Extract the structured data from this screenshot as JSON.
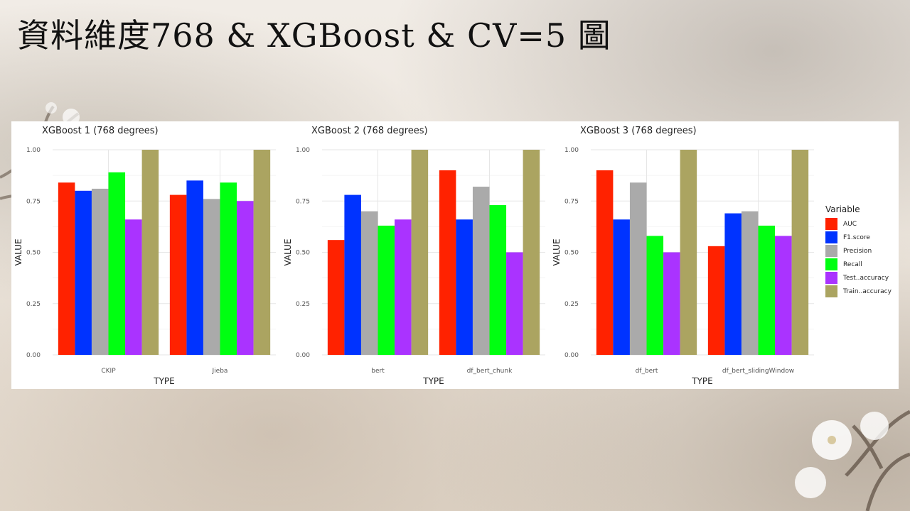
{
  "slide": {
    "title": "資料維度768 & XGBoost & CV=5 圖"
  },
  "legend": {
    "title": "Variable"
  },
  "colors": {
    "AUC": "#ff2200",
    "F1.score": "#0033ff",
    "Precision": "#aaaaaa",
    "Recall": "#00ff11",
    "Test..accuracy": "#aa33ff",
    "Train..accuracy": "#aba461"
  },
  "chart_data": [
    {
      "type": "bar",
      "title": "XGBoost 1 (768 degrees)",
      "xlabel": "TYPE",
      "ylabel": "VALUE",
      "ylim": [
        0,
        1
      ],
      "yticks": [
        "0.00",
        "0.25",
        "0.50",
        "0.75",
        "1.00"
      ],
      "grid": true,
      "legend_position": "right",
      "categories": [
        "CKIP",
        "Jieba"
      ],
      "series": [
        {
          "name": "AUC",
          "values": [
            0.84,
            0.78
          ]
        },
        {
          "name": "F1.score",
          "values": [
            0.8,
            0.85
          ]
        },
        {
          "name": "Precision",
          "values": [
            0.81,
            0.76
          ]
        },
        {
          "name": "Recall",
          "values": [
            0.89,
            0.84
          ]
        },
        {
          "name": "Test..accuracy",
          "values": [
            0.66,
            0.75
          ]
        },
        {
          "name": "Train..accuracy",
          "values": [
            1.0,
            1.0
          ]
        }
      ]
    },
    {
      "type": "bar",
      "title": "XGBoost 2 (768 degrees)",
      "xlabel": "TYPE",
      "ylabel": "VALUE",
      "ylim": [
        0,
        1
      ],
      "yticks": [
        "0.00",
        "0.25",
        "0.50",
        "0.75",
        "1.00"
      ],
      "grid": true,
      "legend_position": "right",
      "categories": [
        "bert",
        "df_bert_chunk"
      ],
      "series": [
        {
          "name": "AUC",
          "values": [
            0.56,
            0.9
          ]
        },
        {
          "name": "F1.score",
          "values": [
            0.78,
            0.66
          ]
        },
        {
          "name": "Precision",
          "values": [
            0.7,
            0.82
          ]
        },
        {
          "name": "Recall",
          "values": [
            0.63,
            0.73
          ]
        },
        {
          "name": "Test..accuracy",
          "values": [
            0.66,
            0.5
          ]
        },
        {
          "name": "Train..accuracy",
          "values": [
            1.0,
            1.0
          ]
        }
      ]
    },
    {
      "type": "bar",
      "title": "XGBoost 3 (768 degrees)",
      "xlabel": "TYPE",
      "ylabel": "VALUE",
      "ylim": [
        0,
        1
      ],
      "yticks": [
        "0.00",
        "0.25",
        "0.50",
        "0.75",
        "1.00"
      ],
      "grid": true,
      "legend_position": "right",
      "categories": [
        "df_bert",
        "df_bert_slidingWindow"
      ],
      "series": [
        {
          "name": "AUC",
          "values": [
            0.9,
            0.53
          ]
        },
        {
          "name": "F1.score",
          "values": [
            0.66,
            0.69
          ]
        },
        {
          "name": "Precision",
          "values": [
            0.84,
            0.7
          ]
        },
        {
          "name": "Recall",
          "values": [
            0.58,
            0.63
          ]
        },
        {
          "name": "Test..accuracy",
          "values": [
            0.5,
            0.58
          ]
        },
        {
          "name": "Train..accuracy",
          "values": [
            1.0,
            1.0
          ]
        }
      ]
    }
  ]
}
